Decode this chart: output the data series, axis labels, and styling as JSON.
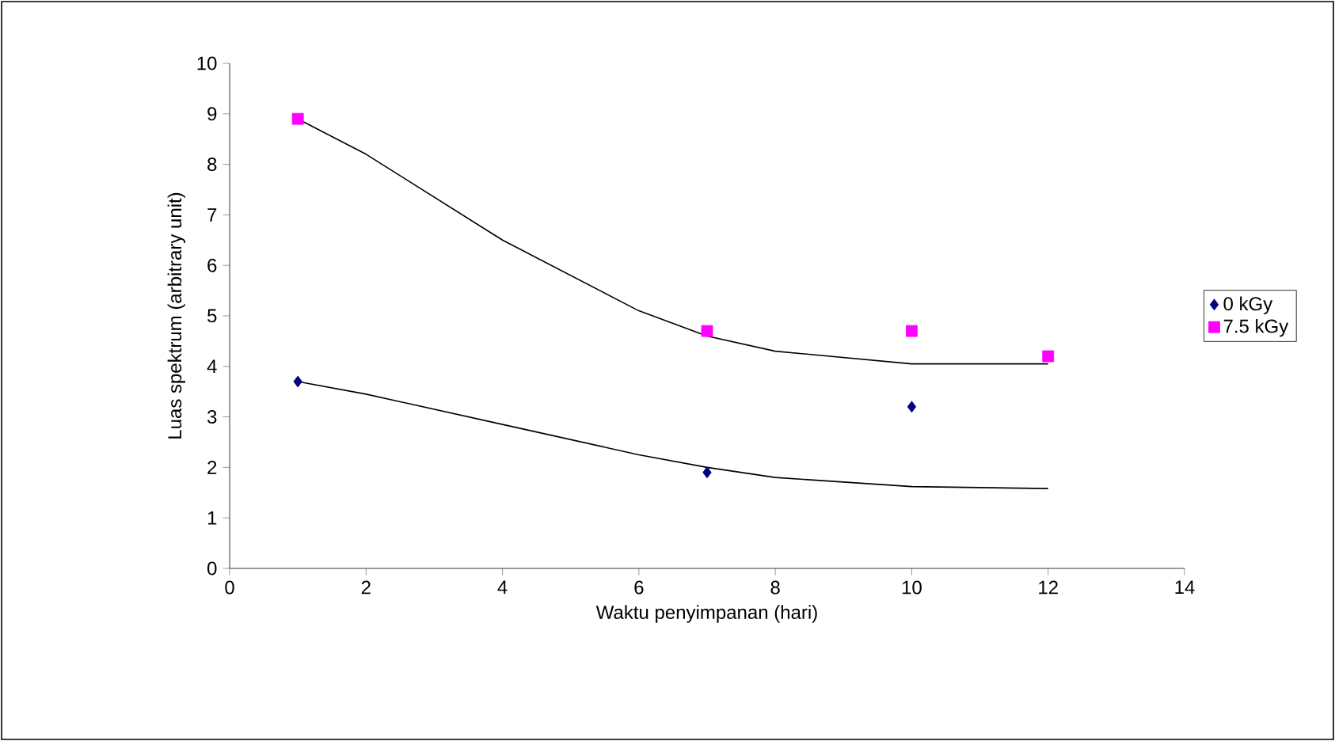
{
  "chart_data": {
    "type": "scatter",
    "xlabel": "Waktu penyimpanan (hari)",
    "ylabel": "Luas spektrum (arbitrary unit)",
    "xlim": [
      0,
      14
    ],
    "ylim": [
      0,
      10
    ],
    "xticks": [
      0,
      2,
      4,
      6,
      8,
      10,
      12,
      14
    ],
    "yticks": [
      0,
      1,
      2,
      3,
      4,
      5,
      6,
      7,
      8,
      9,
      10
    ],
    "grid": false,
    "legend": "right",
    "series": [
      {
        "name": "0 kGy",
        "color": "#000080",
        "marker": "diamond",
        "x": [
          1,
          7,
          10
        ],
        "values": [
          3.7,
          1.9,
          3.2
        ]
      },
      {
        "name": "7.5 kGy",
        "color": "#ff00ff",
        "marker": "square",
        "x": [
          1,
          7,
          10,
          12
        ],
        "values": [
          8.9,
          4.7,
          4.7,
          4.2
        ]
      },
      {
        "type": "line",
        "color": "#000000",
        "marker": "none",
        "x": [
          1,
          2,
          4,
          6,
          7,
          8,
          10,
          12
        ],
        "values": [
          3.7,
          3.45,
          2.85,
          2.25,
          2.0,
          1.8,
          1.62,
          1.58
        ]
      },
      {
        "type": "line",
        "color": "#000000",
        "marker": "none",
        "x": [
          1,
          2,
          4,
          6,
          7,
          8,
          10,
          12
        ],
        "values": [
          8.9,
          8.2,
          6.5,
          5.1,
          4.6,
          4.3,
          4.05,
          4.05
        ]
      }
    ]
  }
}
